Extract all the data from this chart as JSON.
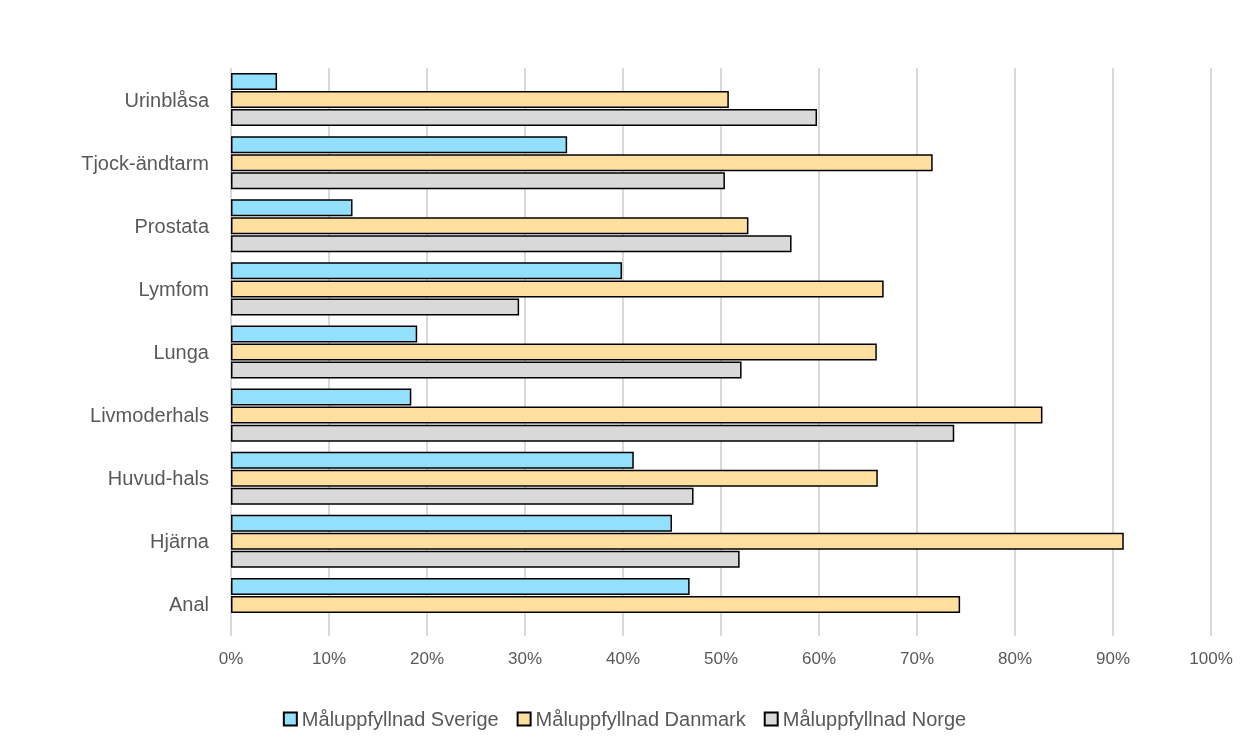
{
  "chart_data": {
    "type": "bar",
    "orientation": "horizontal",
    "categories": [
      "Urinblåsa",
      "Tjock-ändtarm",
      "Prostata",
      "Lymfom",
      "Lunga",
      "Livmoderhals",
      "Huvud-hals",
      "Hjärna",
      "Anal"
    ],
    "series": [
      {
        "name": "Måluppfyllnad Sverige",
        "color": "#93e0fc",
        "values": [
          4.7,
          34.3,
          12.4,
          39.9,
          19.0,
          18.4,
          41.1,
          45.0,
          46.8
        ]
      },
      {
        "name": "Måluppfyllnad Danmark",
        "color": "#ffdf9f",
        "values": [
          50.8,
          71.6,
          52.8,
          66.6,
          65.9,
          82.8,
          66.0,
          91.1,
          74.4
        ]
      },
      {
        "name": "Måluppfyllnad Norge",
        "color": "#d9d9d9",
        "values": [
          59.8,
          50.4,
          57.2,
          29.4,
          52.1,
          73.8,
          47.2,
          51.9,
          null
        ]
      }
    ],
    "xlim": [
      0,
      100
    ],
    "xticks": [
      {
        "value": 0,
        "label": "0%"
      },
      {
        "value": 10,
        "label": "10%"
      },
      {
        "value": 20,
        "label": "20%"
      },
      {
        "value": 30,
        "label": "30%"
      },
      {
        "value": 40,
        "label": "40%"
      },
      {
        "value": 50,
        "label": "50%"
      },
      {
        "value": 60,
        "label": "60%"
      },
      {
        "value": 70,
        "label": "70%"
      },
      {
        "value": 80,
        "label": "80%"
      },
      {
        "value": 90,
        "label": "90%"
      },
      {
        "value": 100,
        "label": "100%"
      }
    ],
    "grid": "x",
    "legend": "bottom"
  }
}
